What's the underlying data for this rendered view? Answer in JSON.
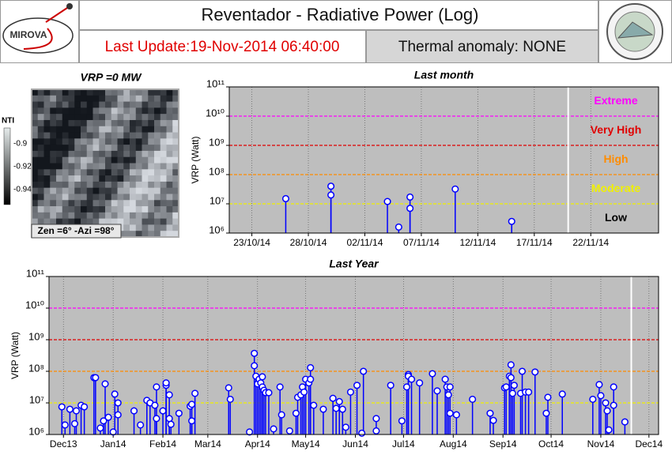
{
  "header": {
    "logo_text": "MIROVA",
    "title": "Reventador - Radiative Power (Log)",
    "last_update": "Last Update:19-Nov-2014 06:40:00",
    "thermal_anomaly": "Thermal anomaly:  NONE"
  },
  "image_panel": {
    "title": "VRP =0 MW",
    "colorbar_label": "NTI",
    "colorbar_ticks": [
      "-0.9",
      "-0.92",
      "-0.94"
    ],
    "caption": "Zen =6° -Azi =98°"
  },
  "chart_data": [
    {
      "type": "stem",
      "title": "Last month",
      "ylabel": "VRP (Watt)",
      "yscale": "log",
      "color": "#0000ff",
      "x": [
        "2014-10-26",
        "2014-10-30",
        "2014-10-30",
        "2014-11-04",
        "2014-11-05",
        "2014-11-06",
        "2014-11-06",
        "2014-11-10",
        "2014-11-15"
      ],
      "values": [
        15000000,
        20000000,
        40000000,
        12000000,
        1600000,
        17000000,
        7000000,
        32000000,
        2500000
      ],
      "xlim": [
        "2014-10-21",
        "2014-11-28"
      ],
      "xticks": [
        {
          "value": "2014-10-23",
          "label": "23/10/14"
        },
        {
          "value": "2014-10-28",
          "label": "28/10/14"
        },
        {
          "value": "2014-11-02",
          "label": "02/11/14"
        },
        {
          "value": "2014-11-07",
          "label": "07/11/14"
        },
        {
          "value": "2014-11-12",
          "label": "12/11/14"
        },
        {
          "value": "2014-11-17",
          "label": "17/11/14"
        },
        {
          "value": "2014-11-22",
          "label": "22/11/14"
        }
      ],
      "ylim": [
        1000000,
        100000000000
      ],
      "yticks": [
        {
          "value": 1000000,
          "label": "10⁶"
        },
        {
          "value": 10000000,
          "label": "10⁷"
        },
        {
          "value": 100000000,
          "label": "10⁸"
        },
        {
          "value": 1000000000,
          "label": "10⁹"
        },
        {
          "value": 10000000000,
          "label": "10¹⁰"
        },
        {
          "value": 100000000000,
          "label": "10¹¹"
        }
      ],
      "now_line": "2014-11-20",
      "thresholds": [
        {
          "label": "Extreme",
          "value": 10000000000,
          "color": "#ff00ff"
        },
        {
          "label": "Very High",
          "value": 1000000000,
          "color": "#e00000"
        },
        {
          "label": "High",
          "value": 100000000,
          "color": "#ff8c00"
        },
        {
          "label": "Moderate",
          "value": 10000000,
          "color": "#f0f000"
        },
        {
          "label": "Low",
          "color": "#000000"
        }
      ],
      "grid": true
    },
    {
      "type": "stem",
      "title": "Last Year",
      "ylabel": "VRP (Watt)",
      "yscale": "log",
      "color": "#0000ff",
      "x": [
        "2013-11-30",
        "2013-12-02",
        "2013-12-05",
        "2013-12-08",
        "2013-12-09",
        "2013-12-12",
        "2013-12-14",
        "2013-12-20",
        "2013-12-21",
        "2013-12-24",
        "2013-12-26",
        "2013-12-27",
        "2013-12-29",
        "2014-01-01",
        "2014-01-02",
        "2014-01-04",
        "2014-01-04",
        "2014-01-14",
        "2014-01-18",
        "2014-01-22",
        "2014-01-24",
        "2014-01-27",
        "2014-01-28",
        "2014-01-28",
        "2014-02-01",
        "2014-02-03",
        "2014-02-03",
        "2014-02-05",
        "2014-02-05",
        "2014-02-06",
        "2014-02-11",
        "2014-02-18",
        "2014-02-19",
        "2014-02-19",
        "2014-02-21",
        "2014-03-14",
        "2014-03-15",
        "2014-03-27",
        "2014-03-30",
        "2014-03-30",
        "2014-03-31",
        "2014-04-01",
        "2014-04-02",
        "2014-04-03",
        "2014-04-04",
        "2014-04-04",
        "2014-04-05",
        "2014-04-06",
        "2014-04-08",
        "2014-04-11",
        "2014-04-15",
        "2014-04-16",
        "2014-04-21",
        "2014-04-25",
        "2014-04-26",
        "2014-04-28",
        "2014-04-29",
        "2014-04-30",
        "2014-05-01",
        "2014-05-03",
        "2014-05-04",
        "2014-05-04",
        "2014-05-06",
        "2014-05-12",
        "2014-05-18",
        "2014-05-20",
        "2014-05-22",
        "2014-05-24",
        "2014-05-26",
        "2014-05-29",
        "2014-06-02",
        "2014-06-05",
        "2014-06-06",
        "2014-06-14",
        "2014-06-14",
        "2014-06-23",
        "2014-06-30",
        "2014-07-03",
        "2014-07-04",
        "2014-07-04",
        "2014-07-06",
        "2014-07-11",
        "2014-07-19",
        "2014-07-22",
        "2014-07-27",
        "2014-07-28",
        "2014-07-29",
        "2014-07-30",
        "2014-07-30",
        "2014-08-03",
        "2014-08-13",
        "2014-08-24",
        "2014-08-26",
        "2014-09-02",
        "2014-09-03",
        "2014-09-05",
        "2014-09-06",
        "2014-09-06",
        "2014-09-07",
        "2014-09-08",
        "2014-09-12",
        "2014-09-13",
        "2014-09-15",
        "2014-09-17",
        "2014-09-21",
        "2014-09-28",
        "2014-09-29",
        "2014-10-08",
        "2014-10-27",
        "2014-10-31",
        "2014-11-01",
        "2014-11-04",
        "2014-11-05",
        "2014-11-06",
        "2014-11-09",
        "2014-11-09",
        "2014-11-16"
      ],
      "values": [
        7500000,
        2000000,
        6300000,
        2200000,
        5600000,
        8400000,
        7500000,
        63000000,
        63000000,
        1600000,
        2700000,
        40000000,
        3500000,
        1200000,
        19000000,
        4200000,
        10000000,
        5600000,
        2000000,
        12000000,
        10000000,
        8400000,
        32000000,
        3200000,
        5600000,
        36000000,
        43000000,
        18000000,
        3200000,
        2100000,
        4700000,
        7900000,
        2700000,
        9000000,
        20000000,
        30000000,
        13000000,
        1200000,
        370000000,
        150000000,
        70000000,
        40000000,
        56000000,
        43000000,
        32000000,
        67000000,
        25000000,
        21000000,
        21000000,
        1500000,
        32000000,
        4200000,
        1300000,
        4700000,
        15000000,
        18000000,
        32000000,
        22000000,
        56000000,
        43000000,
        130000000,
        56000000,
        8400000,
        6300000,
        14000000,
        6700000,
        11000000,
        6300000,
        1700000,
        22000000,
        36000000,
        1100000,
        100000000,
        3200000,
        1300000,
        36000000,
        2700000,
        32000000,
        79000000,
        70000000,
        56000000,
        43000000,
        84000000,
        24000000,
        56000000,
        32000000,
        18000000,
        32000000,
        4700000,
        4200000,
        13000000,
        4700000,
        2800000,
        30000000,
        32000000,
        70000000,
        160000000,
        63000000,
        20000000,
        36000000,
        20000000,
        100000000,
        22000000,
        22000000,
        95000000,
        4700000,
        15000000,
        19000000,
        13000000,
        38000000,
        17000000,
        10000000,
        5600000,
        1400000,
        32000000,
        8400000,
        2500000
      ],
      "xlim": [
        "2013-11-22",
        "2014-12-07"
      ],
      "xticks": [
        {
          "value": "2013-12-01",
          "label": "Dec13"
        },
        {
          "value": "2014-01-01",
          "label": "Jan14"
        },
        {
          "value": "2014-02-01",
          "label": "Feb14"
        },
        {
          "value": "2014-03-01",
          "label": "Mar14"
        },
        {
          "value": "2014-04-01",
          "label": "Apr14"
        },
        {
          "value": "2014-05-01",
          "label": "May14"
        },
        {
          "value": "2014-06-01",
          "label": "Jun14"
        },
        {
          "value": "2014-07-01",
          "label": "Jul14"
        },
        {
          "value": "2014-08-01",
          "label": "Aug14"
        },
        {
          "value": "2014-09-01",
          "label": "Sep14"
        },
        {
          "value": "2014-10-01",
          "label": "Oct14"
        },
        {
          "value": "2014-11-01",
          "label": "Nov14"
        },
        {
          "value": "2014-12-01",
          "label": "Dec14"
        }
      ],
      "ylim": [
        1000000,
        100000000000
      ],
      "yticks": [
        {
          "value": 1000000,
          "label": "10⁶"
        },
        {
          "value": 10000000,
          "label": "10⁷"
        },
        {
          "value": 100000000,
          "label": "10⁸"
        },
        {
          "value": 1000000000,
          "label": "10⁹"
        },
        {
          "value": 10000000000,
          "label": "10¹⁰"
        },
        {
          "value": 100000000000,
          "label": "10¹¹"
        }
      ],
      "now_line": "2014-11-20",
      "thresholds": [
        {
          "value": 10000000000,
          "color": "#ff00ff"
        },
        {
          "value": 1000000000,
          "color": "#e00000"
        },
        {
          "value": 100000000,
          "color": "#ff8c00"
        },
        {
          "value": 10000000,
          "color": "#f0f000"
        }
      ],
      "grid": true
    }
  ]
}
